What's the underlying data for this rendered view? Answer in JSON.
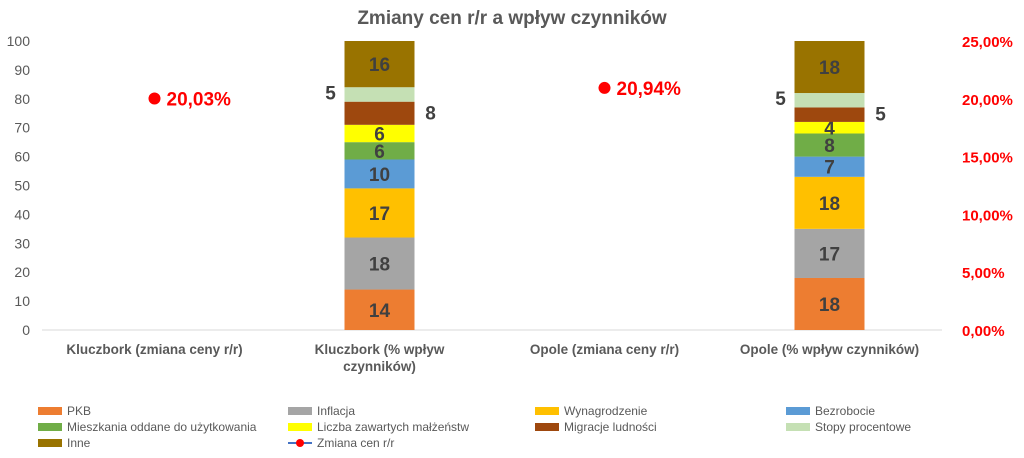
{
  "chart_data": {
    "type": "stacked-bar",
    "title": "Zmiany cen r/r a wpływ czynników",
    "categories": [
      "Kluczbork (zmiana ceny r/r)",
      "Kluczbork (% wpływ czynników)",
      "Opole (zmiana ceny r/r)",
      "Opole (% wpływ czynników)"
    ],
    "ylim": [
      0,
      100
    ],
    "yticks": [
      0,
      10,
      20,
      30,
      40,
      50,
      60,
      70,
      80,
      90,
      100
    ],
    "y2lim": [
      0,
      25
    ],
    "y2ticks": [
      "0,00%",
      "5,00%",
      "10,00%",
      "15,00%",
      "20,00%",
      "25,00%"
    ],
    "series": [
      {
        "name": "PKB",
        "color": "#ED7D31",
        "values": [
          null,
          14,
          null,
          18
        ],
        "labels": [
          "",
          "14",
          "",
          "18"
        ]
      },
      {
        "name": "Inflacja",
        "color": "#A5A5A5",
        "values": [
          null,
          18,
          null,
          17
        ],
        "labels": [
          "",
          "18",
          "",
          "17"
        ]
      },
      {
        "name": "Wynagrodzenie",
        "color": "#FFC000",
        "values": [
          null,
          17,
          null,
          18
        ],
        "labels": [
          "",
          "17",
          "",
          "18"
        ]
      },
      {
        "name": "Bezrobocie",
        "color": "#5B9BD5",
        "values": [
          null,
          10,
          null,
          7
        ],
        "labels": [
          "",
          "10",
          "",
          "7"
        ]
      },
      {
        "name": "Mieszkania oddane do użytkowania",
        "color": "#70AD47",
        "values": [
          null,
          6,
          null,
          8
        ],
        "labels": [
          "",
          "6",
          "",
          "8"
        ]
      },
      {
        "name": "Liczba zawartych małżeństw",
        "color": "#FFFF00",
        "values": [
          null,
          6,
          null,
          4
        ],
        "labels": [
          "",
          "6",
          "",
          "4"
        ]
      },
      {
        "name": "Migracje ludności",
        "color": "#9E480E",
        "values": [
          null,
          8,
          null,
          5
        ],
        "labels": [
          "",
          "8",
          "",
          "5"
        ]
      },
      {
        "name": "Stopy procentowe",
        "color": "#C5E0B4",
        "values": [
          null,
          5,
          null,
          5
        ],
        "labels": [
          "",
          "5",
          "",
          "5"
        ]
      },
      {
        "name": "Inne",
        "color": "#997300",
        "values": [
          null,
          16,
          null,
          18
        ],
        "labels": [
          "",
          "16",
          "",
          "18"
        ]
      }
    ],
    "line_series": {
      "name": "Zmiana cen r/r",
      "color": "#FF0000",
      "axis": "secondary",
      "values": [
        20.03,
        null,
        20.94,
        null
      ],
      "labels": [
        "20,03%",
        "",
        "20,94%",
        ""
      ]
    }
  }
}
